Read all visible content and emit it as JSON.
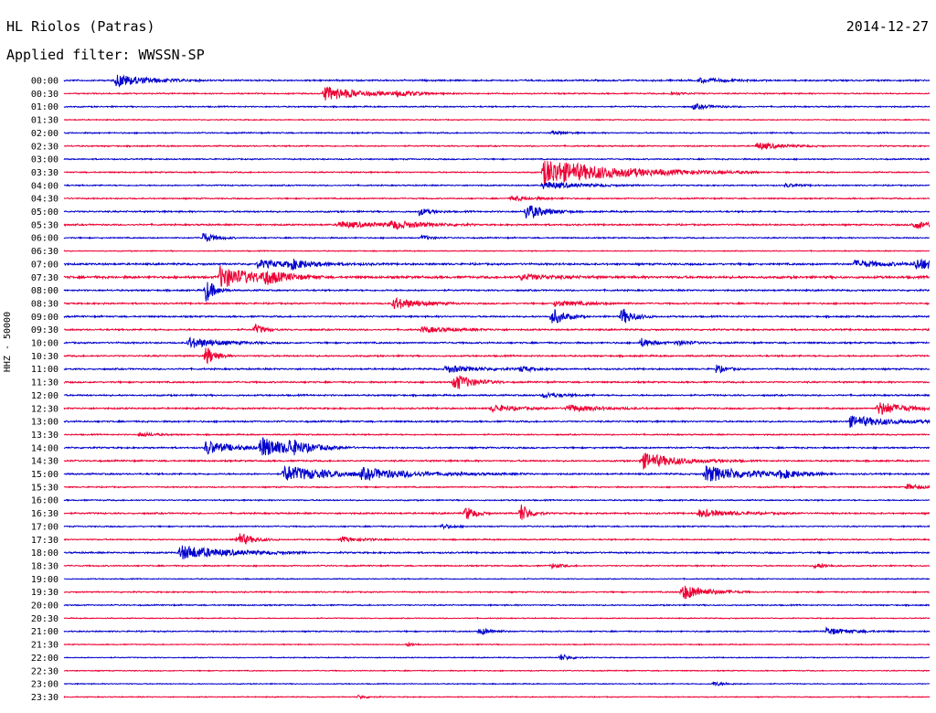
{
  "header": {
    "station": "HL Riolos (Patras)",
    "filter": "Applied filter: WWSSN-SP",
    "date": "2014-12-27"
  },
  "colors": {
    "even_trace": "#0000cc",
    "odd_trace": "#ee0033",
    "background": "#ffffff"
  },
  "chart_data": {
    "type": "line",
    "chart_kind": "helicorder",
    "title": "HL Riolos (Patras)",
    "subtitle": "Applied filter: WWSSN-SP",
    "date": "2014-12-27",
    "ylabel": "HHZ - 50000",
    "xlabel": "",
    "row_minutes": 30,
    "grid": false,
    "legend": "none",
    "rows": [
      {
        "label": "00:00",
        "noise": 1.0,
        "events": [
          {
            "t": 1.8,
            "a": 7,
            "d": 1.0
          },
          {
            "t": 22.0,
            "a": 2.5,
            "d": 0.8
          }
        ]
      },
      {
        "label": "00:30",
        "noise": 0.8,
        "events": [
          {
            "t": 9.0,
            "a": 8,
            "d": 1.2
          },
          {
            "t": 11.5,
            "a": 2.5,
            "d": 0.8
          },
          {
            "t": 21.0,
            "a": 1.5,
            "d": 0.5
          }
        ]
      },
      {
        "label": "01:00",
        "noise": 0.8,
        "events": [
          {
            "t": 21.8,
            "a": 3,
            "d": 0.6
          }
        ]
      },
      {
        "label": "01:30",
        "noise": 0.6,
        "events": []
      },
      {
        "label": "02:00",
        "noise": 0.8,
        "events": [
          {
            "t": 16.9,
            "a": 2,
            "d": 0.4
          }
        ]
      },
      {
        "label": "02:30",
        "noise": 0.8,
        "events": [
          {
            "t": 24.0,
            "a": 4,
            "d": 0.8
          }
        ]
      },
      {
        "label": "03:00",
        "noise": 0.8,
        "events": []
      },
      {
        "label": "03:30",
        "noise": 0.8,
        "events": [
          {
            "t": 16.6,
            "a": 14,
            "d": 2.5
          }
        ]
      },
      {
        "label": "04:00",
        "noise": 0.8,
        "events": [
          {
            "t": 16.6,
            "a": 4,
            "d": 1.2
          },
          {
            "t": 25.0,
            "a": 2,
            "d": 0.4
          }
        ]
      },
      {
        "label": "04:30",
        "noise": 0.8,
        "events": [
          {
            "t": 15.5,
            "a": 2.5,
            "d": 0.8
          }
        ]
      },
      {
        "label": "05:00",
        "noise": 1.0,
        "events": [
          {
            "t": 12.3,
            "a": 4,
            "d": 0.4
          },
          {
            "t": 16.0,
            "a": 9,
            "d": 0.6
          }
        ]
      },
      {
        "label": "05:30",
        "noise": 1.0,
        "events": [
          {
            "t": 9.5,
            "a": 3.5,
            "d": 1.5
          },
          {
            "t": 11.3,
            "a": 4,
            "d": 1.0
          },
          {
            "t": 29.4,
            "a": 4,
            "d": 1.0
          }
        ]
      },
      {
        "label": "06:00",
        "noise": 0.8,
        "events": [
          {
            "t": 4.8,
            "a": 6,
            "d": 0.4
          },
          {
            "t": 12.4,
            "a": 3,
            "d": 0.3
          }
        ]
      },
      {
        "label": "06:30",
        "noise": 0.6,
        "events": []
      },
      {
        "label": "07:00",
        "noise": 1.2,
        "events": [
          {
            "t": 6.7,
            "a": 4,
            "d": 1.5
          },
          {
            "t": 7.8,
            "a": 5,
            "d": 0.5
          },
          {
            "t": 27.4,
            "a": 4,
            "d": 1.0
          },
          {
            "t": 29.5,
            "a": 6,
            "d": 1.0
          }
        ]
      },
      {
        "label": "07:30",
        "noise": 1.5,
        "events": [
          {
            "t": 5.4,
            "a": 12,
            "d": 1.2
          },
          {
            "t": 6.9,
            "a": 6,
            "d": 0.6
          },
          {
            "t": 15.8,
            "a": 3,
            "d": 1.0
          }
        ]
      },
      {
        "label": "08:00",
        "noise": 1.0,
        "events": [
          {
            "t": 4.9,
            "a": 14,
            "d": 0.3
          }
        ]
      },
      {
        "label": "08:30",
        "noise": 1.0,
        "events": [
          {
            "t": 11.4,
            "a": 7,
            "d": 0.8
          },
          {
            "t": 17.0,
            "a": 3,
            "d": 1.0
          }
        ]
      },
      {
        "label": "09:00",
        "noise": 1.0,
        "events": [
          {
            "t": 16.9,
            "a": 10,
            "d": 0.4
          },
          {
            "t": 19.3,
            "a": 10,
            "d": 0.4
          }
        ]
      },
      {
        "label": "09:30",
        "noise": 1.0,
        "events": [
          {
            "t": 6.6,
            "a": 6,
            "d": 0.3
          },
          {
            "t": 12.4,
            "a": 3,
            "d": 1.0
          }
        ]
      },
      {
        "label": "10:00",
        "noise": 1.0,
        "events": [
          {
            "t": 4.3,
            "a": 6,
            "d": 1.0
          },
          {
            "t": 20.0,
            "a": 5,
            "d": 0.4
          },
          {
            "t": 21.2,
            "a": 3,
            "d": 0.5
          }
        ]
      },
      {
        "label": "10:30",
        "noise": 1.0,
        "events": [
          {
            "t": 4.9,
            "a": 12,
            "d": 0.3
          }
        ]
      },
      {
        "label": "11:00",
        "noise": 1.0,
        "events": [
          {
            "t": 13.2,
            "a": 4,
            "d": 1.0
          },
          {
            "t": 15.8,
            "a": 3,
            "d": 0.5
          },
          {
            "t": 22.6,
            "a": 5,
            "d": 0.3
          }
        ]
      },
      {
        "label": "11:30",
        "noise": 1.0,
        "events": [
          {
            "t": 13.5,
            "a": 10,
            "d": 0.6
          }
        ]
      },
      {
        "label": "12:00",
        "noise": 1.0,
        "events": [
          {
            "t": 16.6,
            "a": 3,
            "d": 0.6
          }
        ]
      },
      {
        "label": "12:30",
        "noise": 1.0,
        "events": [
          {
            "t": 14.8,
            "a": 4,
            "d": 0.8
          },
          {
            "t": 17.4,
            "a": 4,
            "d": 1.0
          },
          {
            "t": 28.2,
            "a": 8,
            "d": 0.8
          }
        ]
      },
      {
        "label": "13:00",
        "noise": 1.0,
        "events": [
          {
            "t": 27.2,
            "a": 6,
            "d": 1.5
          }
        ]
      },
      {
        "label": "13:30",
        "noise": 0.8,
        "events": [
          {
            "t": 2.6,
            "a": 2.5,
            "d": 0.5
          }
        ]
      },
      {
        "label": "14:00",
        "noise": 1.0,
        "events": [
          {
            "t": 4.9,
            "a": 8,
            "d": 0.8
          },
          {
            "t": 6.8,
            "a": 11,
            "d": 1.1
          },
          {
            "t": 7.8,
            "a": 6,
            "d": 0.5
          }
        ]
      },
      {
        "label": "14:30",
        "noise": 1.0,
        "events": [
          {
            "t": 20.0,
            "a": 9,
            "d": 1.2
          }
        ]
      },
      {
        "label": "15:00",
        "noise": 1.0,
        "events": [
          {
            "t": 7.6,
            "a": 9,
            "d": 1.5
          },
          {
            "t": 10.3,
            "a": 5,
            "d": 2.0
          },
          {
            "t": 22.2,
            "a": 9,
            "d": 1.5
          },
          {
            "t": 24.8,
            "a": 4,
            "d": 0.6
          }
        ]
      },
      {
        "label": "15:30",
        "noise": 0.8,
        "events": [
          {
            "t": 29.2,
            "a": 3,
            "d": 0.5
          }
        ]
      },
      {
        "label": "16:00",
        "noise": 0.8,
        "events": []
      },
      {
        "label": "16:30",
        "noise": 1.0,
        "events": [
          {
            "t": 13.9,
            "a": 9,
            "d": 0.3
          },
          {
            "t": 15.8,
            "a": 12,
            "d": 0.3
          },
          {
            "t": 22.0,
            "a": 4,
            "d": 1.2
          }
        ]
      },
      {
        "label": "17:00",
        "noise": 0.8,
        "events": [
          {
            "t": 13.1,
            "a": 3,
            "d": 0.3
          }
        ]
      },
      {
        "label": "17:30",
        "noise": 0.8,
        "events": [
          {
            "t": 6.0,
            "a": 8,
            "d": 0.5
          },
          {
            "t": 9.6,
            "a": 2.5,
            "d": 0.8
          }
        ]
      },
      {
        "label": "18:00",
        "noise": 1.0,
        "events": [
          {
            "t": 4.0,
            "a": 8,
            "d": 1.5
          }
        ]
      },
      {
        "label": "18:30",
        "noise": 0.8,
        "events": [
          {
            "t": 16.9,
            "a": 3,
            "d": 0.3
          },
          {
            "t": 26.0,
            "a": 3,
            "d": 0.4
          }
        ]
      },
      {
        "label": "19:00",
        "noise": 0.6,
        "events": []
      },
      {
        "label": "19:30",
        "noise": 0.8,
        "events": [
          {
            "t": 21.4,
            "a": 9,
            "d": 0.8
          }
        ]
      },
      {
        "label": "20:00",
        "noise": 0.8,
        "events": []
      },
      {
        "label": "20:30",
        "noise": 0.6,
        "events": []
      },
      {
        "label": "21:00",
        "noise": 0.8,
        "events": [
          {
            "t": 14.4,
            "a": 4,
            "d": 0.4
          },
          {
            "t": 26.4,
            "a": 4,
            "d": 0.8
          }
        ]
      },
      {
        "label": "21:30",
        "noise": 0.6,
        "events": [
          {
            "t": 11.9,
            "a": 2,
            "d": 0.3
          }
        ]
      },
      {
        "label": "22:00",
        "noise": 0.6,
        "events": [
          {
            "t": 17.2,
            "a": 4,
            "d": 0.3
          }
        ]
      },
      {
        "label": "22:30",
        "noise": 0.6,
        "events": []
      },
      {
        "label": "23:00",
        "noise": 0.6,
        "events": [
          {
            "t": 22.5,
            "a": 2.5,
            "d": 0.4
          }
        ]
      },
      {
        "label": "23:30",
        "noise": 0.6,
        "events": [
          {
            "t": 10.2,
            "a": 2,
            "d": 0.3
          }
        ]
      }
    ]
  }
}
